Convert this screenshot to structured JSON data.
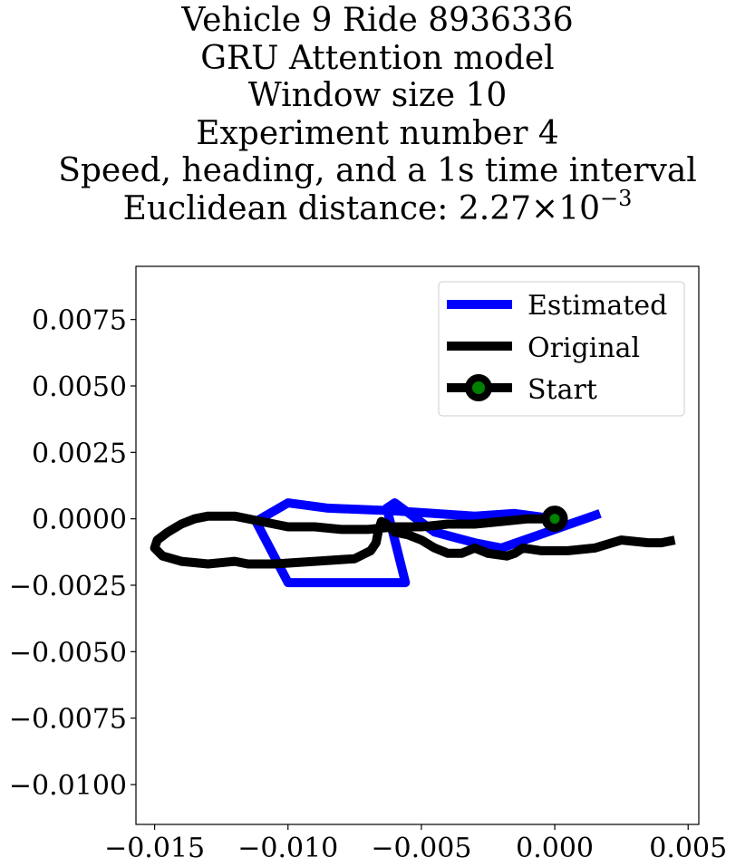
{
  "chart_data": {
    "type": "line",
    "title_lines": [
      "Vehicle 9 Ride 8936336",
      "GRU Attention model",
      "Window size 10",
      "Experiment number 4",
      "Speed, heading, and a 1s time interval"
    ],
    "title_distance_prefix": "Euclidean distance: 2.27",
    "title_distance_times": "×",
    "title_distance_base": "10",
    "title_distance_exponent": "−3",
    "xlabel": "",
    "ylabel": "",
    "xlim": [
      -0.0157,
      0.0054
    ],
    "ylim": [
      -0.0115,
      0.0095
    ],
    "xticks": [
      -0.015,
      -0.01,
      -0.005,
      0.0,
      0.005
    ],
    "xtick_labels": [
      "−0.015",
      "−0.010",
      "−0.005",
      "0.000",
      "0.005"
    ],
    "yticks": [
      0.0075,
      0.005,
      0.0025,
      0.0,
      -0.0025,
      -0.005,
      -0.0075,
      -0.01
    ],
    "ytick_labels": [
      "0.0075",
      "0.0050",
      "0.0025",
      "0.0000",
      "−0.0025",
      "−0.0050",
      "−0.0075",
      "−0.0100"
    ],
    "grid": false,
    "legend": {
      "placement": "upper right",
      "entries": [
        "Estimated",
        "Original",
        "Start"
      ]
    },
    "series": [
      {
        "name": "Estimated",
        "color": "#0000ff",
        "points": [
          [
            0.0017,
            0.0002
          ],
          [
            0.0,
            -0.0004
          ],
          [
            -0.002,
            -0.0011
          ],
          [
            -0.003,
            -0.0009
          ],
          [
            -0.0045,
            -0.0005
          ],
          [
            -0.006,
            0.0006
          ],
          [
            -0.0063,
            0.0004
          ],
          [
            -0.0056,
            -0.0024
          ],
          [
            -0.01,
            -0.0024
          ],
          [
            -0.0112,
            -0.0001
          ],
          [
            -0.01,
            0.0006
          ],
          [
            -0.0085,
            0.0004
          ],
          [
            -0.006,
            0.0003
          ],
          [
            -0.003,
            0.0001
          ],
          [
            -0.0015,
            0.0002
          ],
          [
            0.0,
            0.0
          ]
        ]
      },
      {
        "name": "Original",
        "color": "#000000",
        "points": [
          [
            0.0045,
            -0.0008
          ],
          [
            0.004,
            -0.0009
          ],
          [
            0.0035,
            -0.0009
          ],
          [
            0.0025,
            -0.0008
          ],
          [
            0.0015,
            -0.0011
          ],
          [
            0.0005,
            -0.0012
          ],
          [
            -0.0005,
            -0.0012
          ],
          [
            -0.0012,
            -0.0011
          ],
          [
            -0.0015,
            -0.0013
          ],
          [
            -0.0018,
            -0.0014
          ],
          [
            -0.0025,
            -0.0013
          ],
          [
            -0.003,
            -0.0011
          ],
          [
            -0.0035,
            -0.0013
          ],
          [
            -0.004,
            -0.0013
          ],
          [
            -0.0045,
            -0.0011
          ],
          [
            -0.005,
            -0.0008
          ],
          [
            -0.0055,
            -0.0006
          ],
          [
            -0.006,
            -0.0005
          ],
          [
            -0.0063,
            -0.0002
          ],
          [
            -0.0065,
            -0.0001
          ],
          [
            -0.0066,
            -0.0004
          ],
          [
            -0.0067,
            -0.0009
          ],
          [
            -0.0069,
            -0.0012
          ],
          [
            -0.0075,
            -0.0015
          ],
          [
            -0.009,
            -0.0016
          ],
          [
            -0.0105,
            -0.0017
          ],
          [
            -0.0115,
            -0.0017
          ],
          [
            -0.012,
            -0.0016
          ],
          [
            -0.013,
            -0.0017
          ],
          [
            -0.014,
            -0.0016
          ],
          [
            -0.0147,
            -0.0014
          ],
          [
            -0.015,
            -0.0011
          ],
          [
            -0.0149,
            -0.0008
          ],
          [
            -0.0145,
            -0.0005
          ],
          [
            -0.014,
            -0.0002
          ],
          [
            -0.0135,
            0.0
          ],
          [
            -0.013,
            0.0001
          ],
          [
            -0.012,
            0.0001
          ],
          [
            -0.011,
            -0.0001
          ],
          [
            -0.01,
            -0.0003
          ],
          [
            -0.009,
            -0.0003
          ],
          [
            -0.008,
            -0.0004
          ],
          [
            -0.007,
            -0.0004
          ],
          [
            -0.006,
            -0.0003
          ],
          [
            -0.005,
            -0.0003
          ],
          [
            -0.004,
            -0.0002
          ],
          [
            -0.003,
            -0.0002
          ],
          [
            -0.002,
            -0.0001
          ],
          [
            -0.001,
            0.0
          ],
          [
            0.0,
            0.0
          ]
        ]
      }
    ],
    "start_marker": {
      "name": "Start",
      "point": [
        0.0,
        0.0
      ],
      "edge_color": "#000000",
      "face_color": "#008000"
    }
  }
}
